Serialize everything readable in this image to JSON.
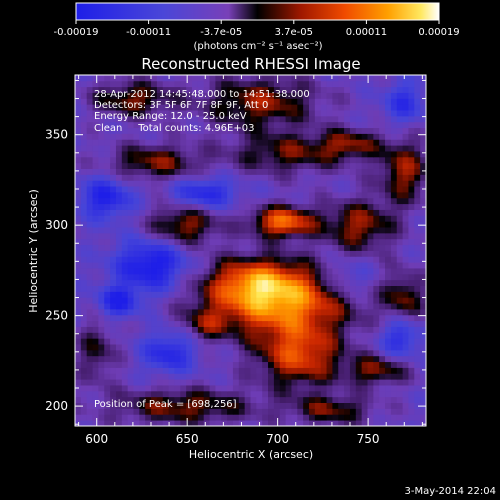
{
  "chart_data": {
    "type": "heatmap",
    "title": "Reconstructed RHESSI Image",
    "xlabel": "Heliocentric X (arcsec)",
    "ylabel": "Heliocentric Y (arcsec)",
    "xlim": [
      588,
      782
    ],
    "ylim": [
      189,
      383
    ],
    "x_ticks": [
      "600",
      "650",
      "700",
      "750"
    ],
    "y_ticks": [
      "200",
      "250",
      "300",
      "350"
    ],
    "colorbar": {
      "tick_labels": [
        "-0.00019",
        "-0.00011",
        "-3.7e-05",
        "3.7e-05",
        "0.00011",
        "0.00019"
      ],
      "unit_label": "(photons cm⁻² s⁻¹ asec⁻²)",
      "range": [
        -0.00019,
        0.00019
      ]
    },
    "annotations": [
      "28-Apr-2012 14:45:48.000 to 14:51:38.000",
      "Detectors: 3F 5F 6F 7F 8F 9F, Att 0",
      "Energy Range: 12.0 - 25.0 keV",
      "Clean     Total counts: 4.96E+03"
    ],
    "peak_label": "Position of Peak = [698,256]",
    "peak": [
      698,
      256
    ],
    "blobs": [
      {
        "x": 700,
        "y": 258,
        "sx": 28,
        "sy": 13,
        "amp": 1.0
      },
      {
        "x": 688,
        "y": 270,
        "sx": 18,
        "sy": 9,
        "amp": 0.55
      },
      {
        "x": 712,
        "y": 228,
        "sx": 16,
        "sy": 12,
        "amp": 0.75
      },
      {
        "x": 703,
        "y": 302,
        "sx": 12,
        "sy": 6,
        "amp": 0.9
      },
      {
        "x": 745,
        "y": 300,
        "sx": 14,
        "sy": 10,
        "amp": 0.55
      },
      {
        "x": 648,
        "y": 300,
        "sx": 14,
        "sy": 8,
        "amp": 0.55
      },
      {
        "x": 632,
        "y": 335,
        "sx": 18,
        "sy": 7,
        "amp": 0.5
      },
      {
        "x": 705,
        "y": 340,
        "sx": 22,
        "sy": 8,
        "amp": 0.45
      },
      {
        "x": 740,
        "y": 345,
        "sx": 12,
        "sy": 6,
        "amp": 0.45
      },
      {
        "x": 770,
        "y": 330,
        "sx": 10,
        "sy": 12,
        "amp": 0.55
      },
      {
        "x": 690,
        "y": 368,
        "sx": 22,
        "sy": 10,
        "amp": 0.55
      },
      {
        "x": 620,
        "y": 370,
        "sx": 16,
        "sy": 7,
        "amp": 0.5
      },
      {
        "x": 770,
        "y": 260,
        "sx": 8,
        "sy": 10,
        "amp": 0.45
      },
      {
        "x": 755,
        "y": 220,
        "sx": 12,
        "sy": 6,
        "amp": 0.5
      },
      {
        "x": 648,
        "y": 200,
        "sx": 28,
        "sy": 7,
        "amp": 0.5
      },
      {
        "x": 730,
        "y": 198,
        "sx": 16,
        "sy": 6,
        "amp": 0.45
      },
      {
        "x": 600,
        "y": 230,
        "sx": 8,
        "sy": 12,
        "amp": 0.35
      },
      {
        "x": 660,
        "y": 245,
        "sx": 8,
        "sy": 6,
        "amp": 0.35
      },
      {
        "x": 612,
        "y": 258,
        "sx": 8,
        "sy": 6,
        "amp": -0.6
      },
      {
        "x": 630,
        "y": 278,
        "sx": 14,
        "sy": 10,
        "amp": -0.7
      },
      {
        "x": 605,
        "y": 315,
        "sx": 10,
        "sy": 8,
        "amp": -0.6
      },
      {
        "x": 660,
        "y": 318,
        "sx": 12,
        "sy": 6,
        "amp": -0.55
      },
      {
        "x": 640,
        "y": 230,
        "sx": 10,
        "sy": 8,
        "amp": -0.55
      },
      {
        "x": 768,
        "y": 238,
        "sx": 8,
        "sy": 8,
        "amp": -0.5
      },
      {
        "x": 738,
        "y": 270,
        "sx": 10,
        "sy": 8,
        "amp": -0.35
      },
      {
        "x": 770,
        "y": 368,
        "sx": 8,
        "sy": 8,
        "amp": -0.45
      }
    ]
  },
  "footer_date": "3-May-2014 22:04"
}
